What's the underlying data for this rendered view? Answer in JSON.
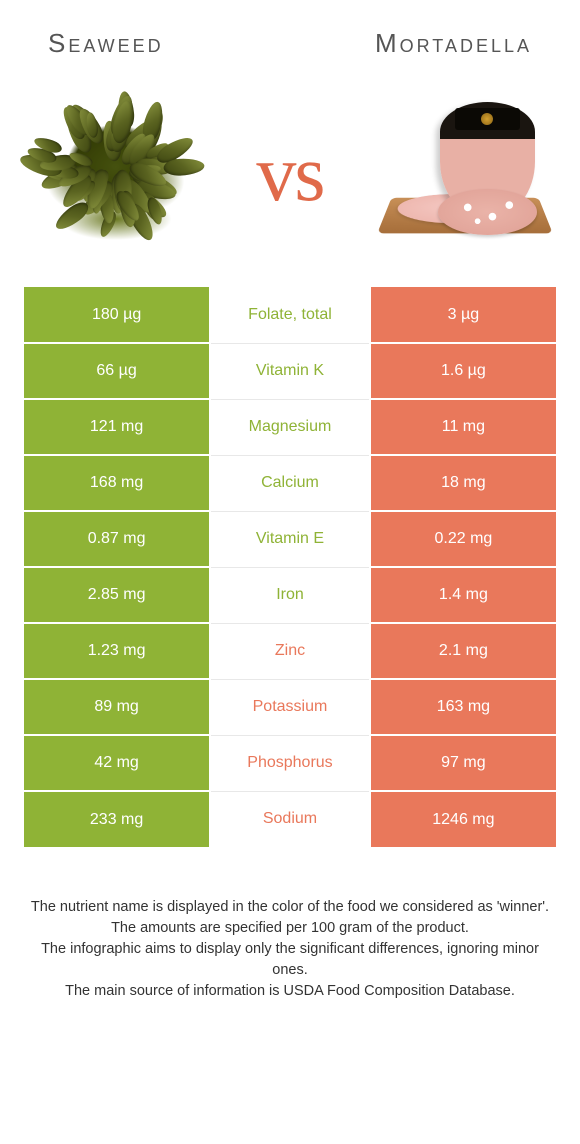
{
  "header": {
    "left": "Seaweed",
    "right": "Mortadella"
  },
  "vs": "vs",
  "colors": {
    "left": "#8fb336",
    "right": "#e9785b",
    "left_text": "#8fb336",
    "right_text": "#e9785b"
  },
  "table": {
    "rows": [
      {
        "left": "180 µg",
        "label": "Folate, total",
        "right": "3 µg",
        "winner": "left"
      },
      {
        "left": "66 µg",
        "label": "Vitamin K",
        "right": "1.6 µg",
        "winner": "left"
      },
      {
        "left": "121 mg",
        "label": "Magnesium",
        "right": "11 mg",
        "winner": "left"
      },
      {
        "left": "168 mg",
        "label": "Calcium",
        "right": "18 mg",
        "winner": "left"
      },
      {
        "left": "0.87 mg",
        "label": "Vitamin E",
        "right": "0.22 mg",
        "winner": "left"
      },
      {
        "left": "2.85 mg",
        "label": "Iron",
        "right": "1.4 mg",
        "winner": "left"
      },
      {
        "left": "1.23 mg",
        "label": "Zinc",
        "right": "2.1 mg",
        "winner": "right"
      },
      {
        "left": "89 mg",
        "label": "Potassium",
        "right": "163 mg",
        "winner": "right"
      },
      {
        "left": "42 mg",
        "label": "Phosphorus",
        "right": "97 mg",
        "winner": "right"
      },
      {
        "left": "233 mg",
        "label": "Sodium",
        "right": "1246 mg",
        "winner": "right"
      }
    ]
  },
  "footer": {
    "l1": "The nutrient name is displayed in the color of the food we considered as 'winner'.",
    "l2": "The amounts are specified per 100 gram of the product.",
    "l3": "The infographic aims to display only the significant differences, ignoring minor ones.",
    "l4": "The main source of information is USDA Food Composition Database."
  }
}
